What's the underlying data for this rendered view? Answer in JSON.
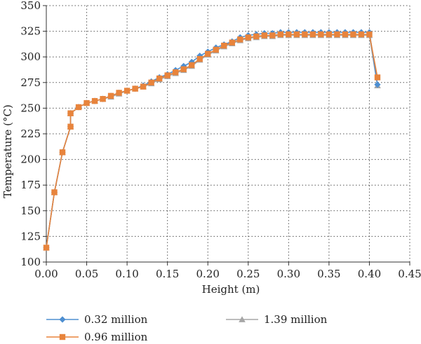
{
  "chart_data": {
    "type": "line",
    "xlabel": "Height (m)",
    "ylabel": "Temperature (°C)",
    "xlim": [
      0.0,
      0.45
    ],
    "ylim": [
      100,
      350
    ],
    "x_ticks": [
      "0.00",
      "0.05",
      "0.10",
      "0.15",
      "0.20",
      "0.25",
      "0.30",
      "0.35",
      "0.40",
      "0.45"
    ],
    "y_ticks": [
      "100",
      "125",
      "150",
      "175",
      "200",
      "225",
      "250",
      "275",
      "300",
      "325",
      "350"
    ],
    "grid": "dotted",
    "legend_position": "bottom",
    "x": [
      0.0,
      0.01,
      0.02,
      0.03,
      0.03,
      0.04,
      0.05,
      0.06,
      0.07,
      0.08,
      0.09,
      0.1,
      0.11,
      0.12,
      0.13,
      0.14,
      0.15,
      0.16,
      0.17,
      0.18,
      0.19,
      0.2,
      0.21,
      0.22,
      0.23,
      0.24,
      0.25,
      0.26,
      0.27,
      0.28,
      0.29,
      0.3,
      0.31,
      0.32,
      0.33,
      0.34,
      0.35,
      0.36,
      0.37,
      0.38,
      0.39,
      0.4,
      0.41
    ],
    "series": [
      {
        "name": "0.32 million",
        "color": "#4e8fd1",
        "marker": "diamond",
        "values": [
          114,
          168,
          207,
          232,
          245,
          251,
          255,
          257,
          259,
          262,
          265,
          267,
          269,
          272,
          276,
          280,
          283,
          287,
          291,
          295,
          301,
          305,
          309,
          312,
          315,
          319,
          321,
          322,
          323,
          323,
          324,
          324,
          324,
          324,
          324,
          324,
          324,
          324,
          324,
          324,
          324,
          324,
          273
        ]
      },
      {
        "name": "0.96 million",
        "color": "#e8843c",
        "marker": "square",
        "values": [
          114,
          168,
          207,
          232,
          245,
          251,
          255,
          257,
          259,
          262,
          265,
          267,
          269,
          271,
          275,
          279,
          282,
          285,
          288,
          292,
          298,
          303,
          307,
          311,
          314,
          317,
          319,
          320,
          321,
          321,
          322,
          322,
          322,
          322,
          322,
          322,
          322,
          322,
          322,
          322,
          322,
          322,
          280
        ]
      },
      {
        "name": "1.39 million",
        "color": "#a6a6a6",
        "marker": "triangle",
        "values": [
          114,
          168,
          207,
          232,
          245,
          251,
          255,
          257,
          259,
          261,
          264,
          267,
          269,
          271,
          274,
          278,
          281,
          284,
          287,
          291,
          297,
          302,
          306,
          310,
          313,
          316,
          318,
          319,
          320,
          320,
          321,
          321,
          321,
          321,
          321,
          321,
          321,
          321,
          321,
          321,
          321,
          321,
          272
        ]
      }
    ]
  }
}
